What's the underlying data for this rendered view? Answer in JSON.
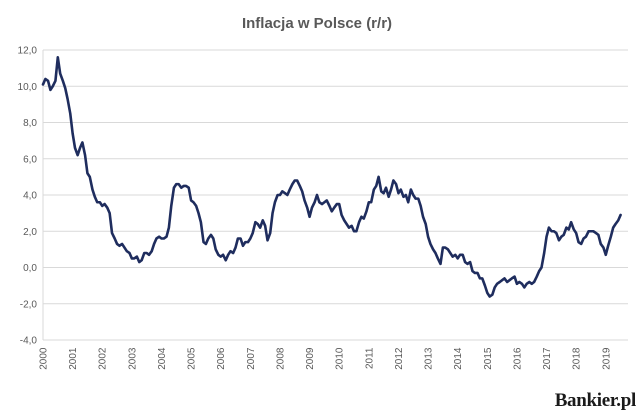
{
  "chart_data": {
    "type": "line",
    "title": "Inflacja w Polsce (r/r)",
    "xlabel": "",
    "ylabel": "",
    "ylim": [
      -4.0,
      12.0
    ],
    "yticks": [
      "12,0",
      "10,0",
      "8,0",
      "6,0",
      "4,0",
      "2,0",
      "0,0",
      "-2,0",
      "-4,0"
    ],
    "ytick_values": [
      12,
      10,
      8,
      6,
      4,
      2,
      0,
      -2,
      -4
    ],
    "xlim": [
      2000,
      2019.75
    ],
    "xticks": [
      "2000",
      "2001",
      "2002",
      "2003",
      "2004",
      "2005",
      "2006",
      "2007",
      "2008",
      "2009",
      "2010",
      "2011",
      "2012",
      "2013",
      "2014",
      "2015",
      "2016",
      "2017",
      "2018",
      "2019"
    ],
    "grid": true,
    "legend": "none",
    "series": [
      {
        "color": "#1f2d5e",
        "points": [
          [
            2000.0,
            10.1
          ],
          [
            2000.08,
            10.4
          ],
          [
            2000.17,
            10.3
          ],
          [
            2000.25,
            9.8
          ],
          [
            2000.33,
            10.0
          ],
          [
            2000.42,
            10.3
          ],
          [
            2000.5,
            11.6
          ],
          [
            2000.58,
            10.7
          ],
          [
            2000.67,
            10.3
          ],
          [
            2000.75,
            9.9
          ],
          [
            2000.83,
            9.3
          ],
          [
            2000.92,
            8.5
          ],
          [
            2001.0,
            7.4
          ],
          [
            2001.08,
            6.6
          ],
          [
            2001.17,
            6.2
          ],
          [
            2001.25,
            6.6
          ],
          [
            2001.33,
            6.9
          ],
          [
            2001.42,
            6.2
          ],
          [
            2001.5,
            5.2
          ],
          [
            2001.58,
            5.0
          ],
          [
            2001.67,
            4.3
          ],
          [
            2001.75,
            3.9
          ],
          [
            2001.83,
            3.6
          ],
          [
            2001.92,
            3.6
          ],
          [
            2002.0,
            3.4
          ],
          [
            2002.08,
            3.5
          ],
          [
            2002.17,
            3.3
          ],
          [
            2002.25,
            3.0
          ],
          [
            2002.33,
            1.9
          ],
          [
            2002.42,
            1.6
          ],
          [
            2002.5,
            1.3
          ],
          [
            2002.58,
            1.2
          ],
          [
            2002.67,
            1.3
          ],
          [
            2002.75,
            1.1
          ],
          [
            2002.83,
            0.9
          ],
          [
            2002.92,
            0.8
          ],
          [
            2003.0,
            0.5
          ],
          [
            2003.08,
            0.5
          ],
          [
            2003.17,
            0.6
          ],
          [
            2003.25,
            0.3
          ],
          [
            2003.33,
            0.4
          ],
          [
            2003.42,
            0.8
          ],
          [
            2003.5,
            0.8
          ],
          [
            2003.58,
            0.7
          ],
          [
            2003.67,
            0.9
          ],
          [
            2003.75,
            1.3
          ],
          [
            2003.83,
            1.6
          ],
          [
            2003.92,
            1.7
          ],
          [
            2004.0,
            1.6
          ],
          [
            2004.08,
            1.6
          ],
          [
            2004.17,
            1.7
          ],
          [
            2004.25,
            2.2
          ],
          [
            2004.33,
            3.4
          ],
          [
            2004.42,
            4.4
          ],
          [
            2004.5,
            4.6
          ],
          [
            2004.58,
            4.6
          ],
          [
            2004.67,
            4.4
          ],
          [
            2004.75,
            4.5
          ],
          [
            2004.83,
            4.5
          ],
          [
            2004.92,
            4.4
          ],
          [
            2005.0,
            3.7
          ],
          [
            2005.08,
            3.6
          ],
          [
            2005.17,
            3.4
          ],
          [
            2005.25,
            3.0
          ],
          [
            2005.33,
            2.5
          ],
          [
            2005.42,
            1.4
          ],
          [
            2005.5,
            1.3
          ],
          [
            2005.58,
            1.6
          ],
          [
            2005.67,
            1.8
          ],
          [
            2005.75,
            1.6
          ],
          [
            2005.83,
            1.0
          ],
          [
            2005.92,
            0.7
          ],
          [
            2006.0,
            0.6
          ],
          [
            2006.08,
            0.7
          ],
          [
            2006.17,
            0.4
          ],
          [
            2006.25,
            0.7
          ],
          [
            2006.33,
            0.9
          ],
          [
            2006.42,
            0.8
          ],
          [
            2006.5,
            1.1
          ],
          [
            2006.58,
            1.6
          ],
          [
            2006.67,
            1.6
          ],
          [
            2006.75,
            1.2
          ],
          [
            2006.83,
            1.4
          ],
          [
            2006.92,
            1.4
          ],
          [
            2007.0,
            1.6
          ],
          [
            2007.08,
            1.9
          ],
          [
            2007.17,
            2.5
          ],
          [
            2007.25,
            2.4
          ],
          [
            2007.33,
            2.2
          ],
          [
            2007.42,
            2.6
          ],
          [
            2007.5,
            2.3
          ],
          [
            2007.58,
            1.5
          ],
          [
            2007.67,
            1.9
          ],
          [
            2007.75,
            3.0
          ],
          [
            2007.83,
            3.6
          ],
          [
            2007.92,
            4.0
          ],
          [
            2008.0,
            4.0
          ],
          [
            2008.08,
            4.2
          ],
          [
            2008.17,
            4.1
          ],
          [
            2008.25,
            4.0
          ],
          [
            2008.33,
            4.3
          ],
          [
            2008.42,
            4.6
          ],
          [
            2008.5,
            4.8
          ],
          [
            2008.58,
            4.8
          ],
          [
            2008.67,
            4.5
          ],
          [
            2008.75,
            4.2
          ],
          [
            2008.83,
            3.7
          ],
          [
            2008.92,
            3.3
          ],
          [
            2009.0,
            2.8
          ],
          [
            2009.08,
            3.3
          ],
          [
            2009.17,
            3.6
          ],
          [
            2009.25,
            4.0
          ],
          [
            2009.33,
            3.6
          ],
          [
            2009.42,
            3.5
          ],
          [
            2009.5,
            3.6
          ],
          [
            2009.58,
            3.7
          ],
          [
            2009.67,
            3.4
          ],
          [
            2009.75,
            3.1
          ],
          [
            2009.83,
            3.3
          ],
          [
            2009.92,
            3.5
          ],
          [
            2010.0,
            3.5
          ],
          [
            2010.08,
            2.9
          ],
          [
            2010.17,
            2.6
          ],
          [
            2010.25,
            2.4
          ],
          [
            2010.33,
            2.2
          ],
          [
            2010.42,
            2.3
          ],
          [
            2010.5,
            2.0
          ],
          [
            2010.58,
            2.0
          ],
          [
            2010.67,
            2.5
          ],
          [
            2010.75,
            2.8
          ],
          [
            2010.83,
            2.7
          ],
          [
            2010.92,
            3.1
          ],
          [
            2011.0,
            3.6
          ],
          [
            2011.08,
            3.6
          ],
          [
            2011.17,
            4.3
          ],
          [
            2011.25,
            4.5
          ],
          [
            2011.33,
            5.0
          ],
          [
            2011.42,
            4.2
          ],
          [
            2011.5,
            4.1
          ],
          [
            2011.58,
            4.4
          ],
          [
            2011.67,
            3.9
          ],
          [
            2011.75,
            4.3
          ],
          [
            2011.83,
            4.8
          ],
          [
            2011.92,
            4.6
          ],
          [
            2012.0,
            4.1
          ],
          [
            2012.08,
            4.3
          ],
          [
            2012.17,
            3.9
          ],
          [
            2012.25,
            4.0
          ],
          [
            2012.33,
            3.6
          ],
          [
            2012.42,
            4.3
          ],
          [
            2012.5,
            4.0
          ],
          [
            2012.58,
            3.8
          ],
          [
            2012.67,
            3.8
          ],
          [
            2012.75,
            3.4
          ],
          [
            2012.83,
            2.8
          ],
          [
            2012.92,
            2.4
          ],
          [
            2013.0,
            1.7
          ],
          [
            2013.08,
            1.3
          ],
          [
            2013.17,
            1.0
          ],
          [
            2013.25,
            0.8
          ],
          [
            2013.33,
            0.5
          ],
          [
            2013.42,
            0.2
          ],
          [
            2013.5,
            1.1
          ],
          [
            2013.58,
            1.1
          ],
          [
            2013.67,
            1.0
          ],
          [
            2013.75,
            0.8
          ],
          [
            2013.83,
            0.6
          ],
          [
            2013.92,
            0.7
          ],
          [
            2014.0,
            0.5
          ],
          [
            2014.08,
            0.7
          ],
          [
            2014.17,
            0.7
          ],
          [
            2014.25,
            0.3
          ],
          [
            2014.33,
            0.2
          ],
          [
            2014.42,
            0.3
          ],
          [
            2014.5,
            -0.2
          ],
          [
            2014.58,
            -0.3
          ],
          [
            2014.67,
            -0.3
          ],
          [
            2014.75,
            -0.6
          ],
          [
            2014.83,
            -0.6
          ],
          [
            2014.92,
            -1.0
          ],
          [
            2015.0,
            -1.4
          ],
          [
            2015.08,
            -1.6
          ],
          [
            2015.17,
            -1.5
          ],
          [
            2015.25,
            -1.1
          ],
          [
            2015.33,
            -0.9
          ],
          [
            2015.42,
            -0.8
          ],
          [
            2015.5,
            -0.7
          ],
          [
            2015.58,
            -0.6
          ],
          [
            2015.67,
            -0.8
          ],
          [
            2015.75,
            -0.7
          ],
          [
            2015.83,
            -0.6
          ],
          [
            2015.92,
            -0.5
          ],
          [
            2016.0,
            -0.9
          ],
          [
            2016.08,
            -0.8
          ],
          [
            2016.17,
            -0.9
          ],
          [
            2016.25,
            -1.1
          ],
          [
            2016.33,
            -0.9
          ],
          [
            2016.42,
            -0.8
          ],
          [
            2016.5,
            -0.9
          ],
          [
            2016.58,
            -0.8
          ],
          [
            2016.67,
            -0.5
          ],
          [
            2016.75,
            -0.2
          ],
          [
            2016.83,
            0.0
          ],
          [
            2016.92,
            0.8
          ],
          [
            2017.0,
            1.7
          ],
          [
            2017.08,
            2.2
          ],
          [
            2017.17,
            2.0
          ],
          [
            2017.25,
            2.0
          ],
          [
            2017.33,
            1.9
          ],
          [
            2017.42,
            1.5
          ],
          [
            2017.5,
            1.7
          ],
          [
            2017.58,
            1.8
          ],
          [
            2017.67,
            2.2
          ],
          [
            2017.75,
            2.1
          ],
          [
            2017.83,
            2.5
          ],
          [
            2017.92,
            2.1
          ],
          [
            2018.0,
            1.9
          ],
          [
            2018.08,
            1.4
          ],
          [
            2018.17,
            1.3
          ],
          [
            2018.25,
            1.6
          ],
          [
            2018.33,
            1.7
          ],
          [
            2018.42,
            2.0
          ],
          [
            2018.5,
            2.0
          ],
          [
            2018.58,
            2.0
          ],
          [
            2018.67,
            1.9
          ],
          [
            2018.75,
            1.8
          ],
          [
            2018.83,
            1.3
          ],
          [
            2018.92,
            1.1
          ],
          [
            2019.0,
            0.7
          ],
          [
            2019.08,
            1.2
          ],
          [
            2019.17,
            1.7
          ],
          [
            2019.25,
            2.2
          ],
          [
            2019.33,
            2.4
          ],
          [
            2019.42,
            2.6
          ],
          [
            2019.5,
            2.9
          ]
        ]
      }
    ]
  },
  "logo": {
    "text": "Bankier.pl"
  }
}
